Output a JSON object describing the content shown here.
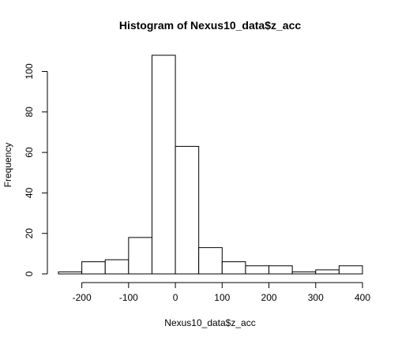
{
  "chart_data": {
    "type": "bar",
    "title": "Histogram of Nexus10_data$z_acc",
    "xlabel": "Nexus10_data$z_acc",
    "ylabel": "Frequency",
    "bin_edges": [
      -250,
      -200,
      -150,
      -100,
      -50,
      0,
      50,
      100,
      150,
      200,
      250,
      300,
      350,
      400
    ],
    "values": [
      1,
      6,
      7,
      18,
      108,
      63,
      13,
      6,
      4,
      4,
      1,
      2,
      4
    ],
    "x_ticks": [
      -200,
      -100,
      0,
      100,
      200,
      300,
      400
    ],
    "y_ticks": [
      0,
      20,
      40,
      60,
      80,
      100
    ],
    "xlim": [
      -250,
      400
    ],
    "ylim": [
      0,
      108
    ],
    "grid": false,
    "bar_fill": "#ffffff",
    "bar_stroke": "#000000"
  }
}
